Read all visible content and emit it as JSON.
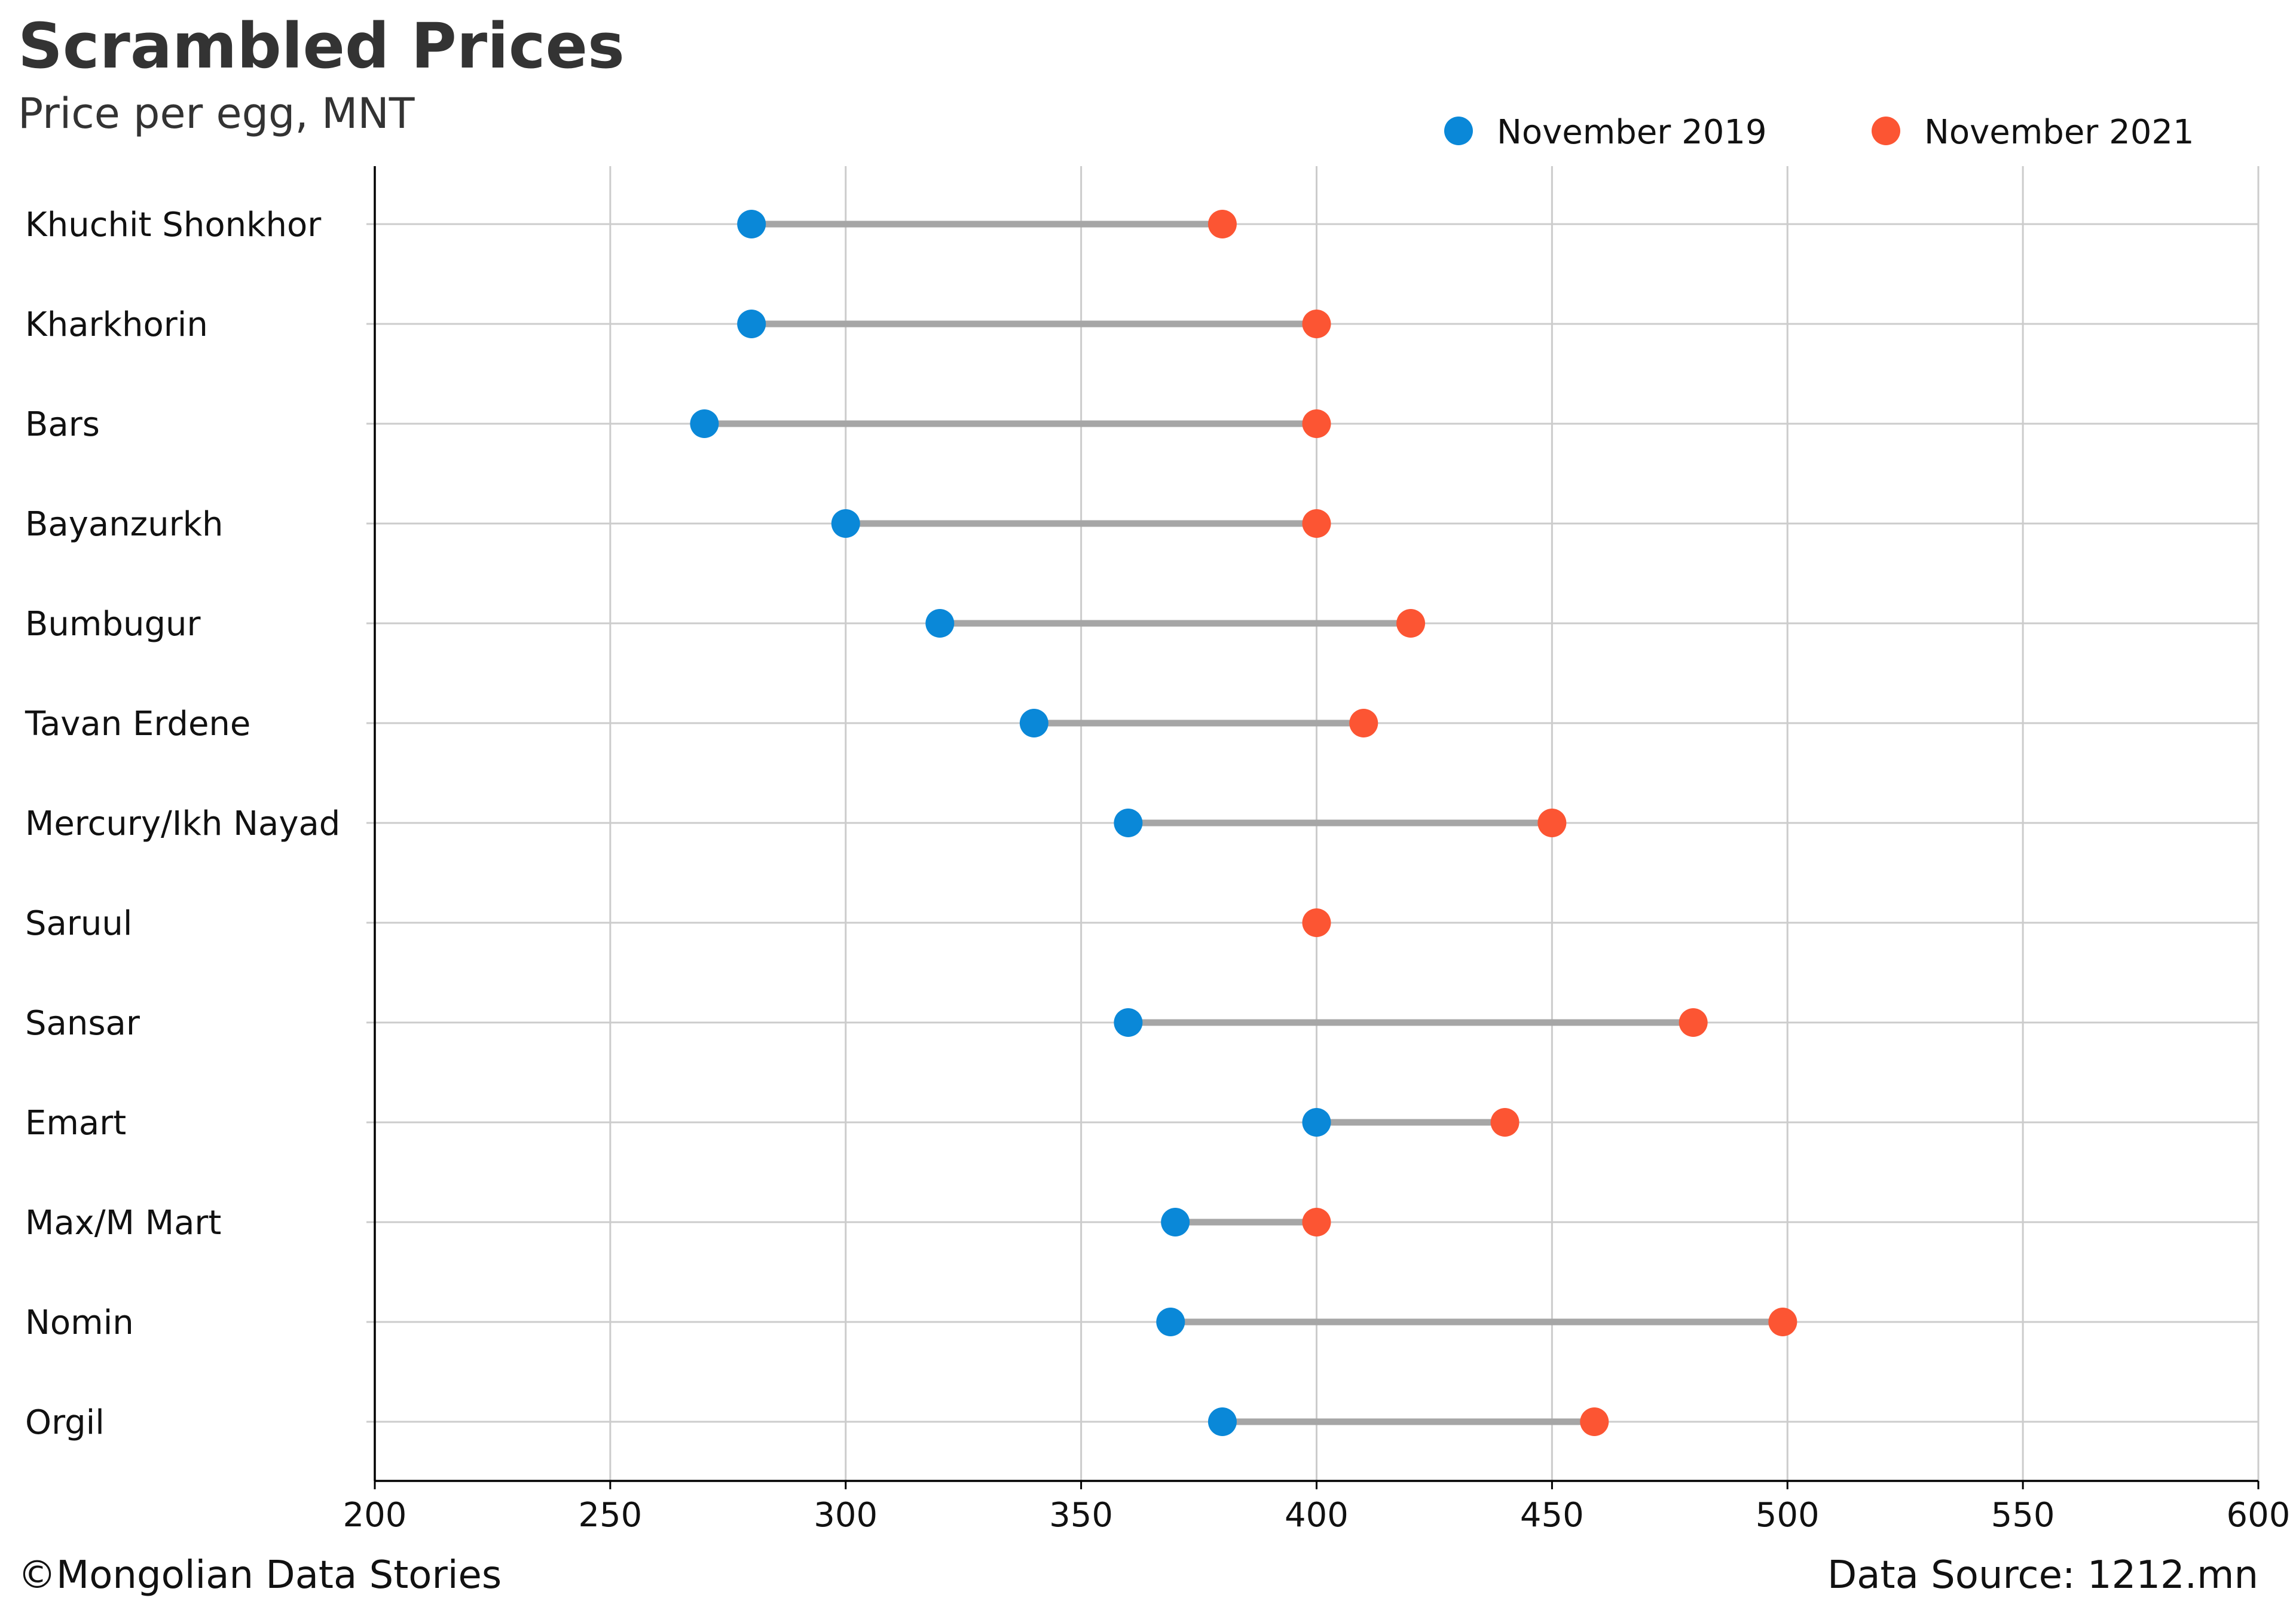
{
  "header": {
    "title": "Scrambled Prices",
    "subtitle": "Price per egg, MNT"
  },
  "footer": {
    "credit": "©Mongolian Data Stories",
    "source": "Data Source: 1212.mn"
  },
  "colors": {
    "series_2019": "#0a88d8",
    "series_2021": "#fc5533",
    "connector": "#a6a6a6",
    "grid": "#cccccc",
    "axis": "#000000"
  },
  "chart_data": {
    "type": "dumbbell",
    "title": "Scrambled Prices",
    "subtitle": "Price per egg, MNT",
    "xlim": [
      200,
      600
    ],
    "xticks": [
      200,
      250,
      300,
      350,
      400,
      450,
      500,
      550,
      600
    ],
    "grid": true,
    "legend_position": "top-right",
    "categories": [
      "Khuchit Shonkhor",
      "Kharkhorin",
      "Bars",
      "Bayanzurkh",
      "Bumbugur",
      "Tavan Erdene",
      "Mercury/Ikh Nayad",
      "Saruul",
      "Sansar",
      "Emart",
      "Max/M Mart",
      "Nomin",
      "Orgil"
    ],
    "series": [
      {
        "name": "November 2019",
        "values": [
          280,
          280,
          270,
          300,
          320,
          340,
          360,
          null,
          360,
          400,
          370,
          369,
          380
        ]
      },
      {
        "name": "November 2021",
        "values": [
          380,
          400,
          400,
          400,
          420,
          410,
          450,
          400,
          480,
          440,
          400,
          499,
          459
        ]
      }
    ]
  }
}
